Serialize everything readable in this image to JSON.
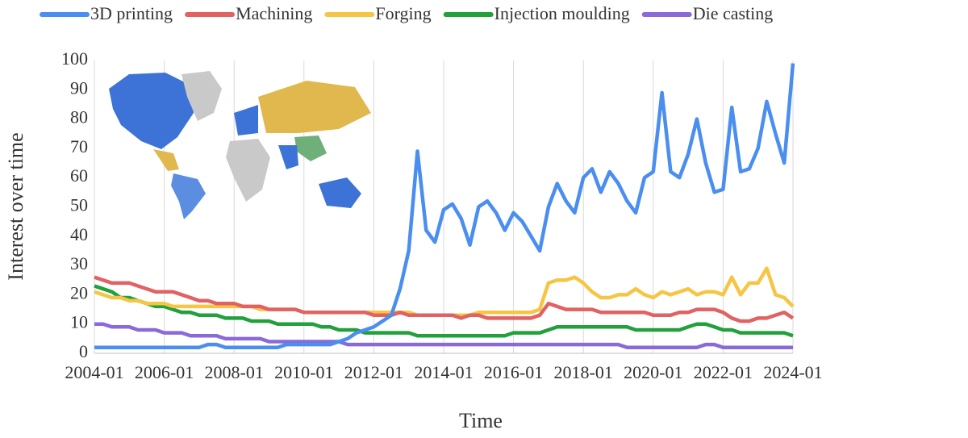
{
  "chart_data": {
    "type": "line",
    "xlabel": "Time",
    "ylabel": "Interest over time",
    "x": [
      "2004-01",
      "2004-04",
      "2004-07",
      "2004-10",
      "2005-01",
      "2005-04",
      "2005-07",
      "2005-10",
      "2006-01",
      "2006-04",
      "2006-07",
      "2006-10",
      "2007-01",
      "2007-04",
      "2007-07",
      "2007-10",
      "2008-01",
      "2008-04",
      "2008-07",
      "2008-10",
      "2009-01",
      "2009-04",
      "2009-07",
      "2009-10",
      "2010-01",
      "2010-04",
      "2010-07",
      "2010-10",
      "2011-01",
      "2011-04",
      "2011-07",
      "2011-10",
      "2012-01",
      "2012-04",
      "2012-07",
      "2012-10",
      "2013-01",
      "2013-04",
      "2013-07",
      "2013-10",
      "2014-01",
      "2014-04",
      "2014-07",
      "2014-10",
      "2015-01",
      "2015-04",
      "2015-07",
      "2015-10",
      "2016-01",
      "2016-04",
      "2016-07",
      "2016-10",
      "2017-01",
      "2017-04",
      "2017-07",
      "2017-10",
      "2018-01",
      "2018-04",
      "2018-07",
      "2018-10",
      "2019-01",
      "2019-04",
      "2019-07",
      "2019-10",
      "2020-01",
      "2020-04",
      "2020-07",
      "2020-10",
      "2021-01",
      "2021-04",
      "2021-07",
      "2021-10",
      "2022-01",
      "2022-04",
      "2022-07",
      "2022-10",
      "2023-01",
      "2023-04",
      "2023-07",
      "2023-10",
      "2024-01"
    ],
    "series": [
      {
        "name": "3D printing",
        "color": "#4a8ef0",
        "values": [
          2,
          2,
          2,
          2,
          2,
          2,
          2,
          2,
          2,
          2,
          2,
          2,
          2,
          3,
          3,
          2,
          2,
          2,
          2,
          2,
          2,
          2,
          3,
          3,
          3,
          3,
          3,
          3,
          4,
          5,
          7,
          8,
          9,
          11,
          13,
          22,
          35,
          69,
          42,
          38,
          49,
          51,
          46,
          37,
          50,
          52,
          48,
          42,
          48,
          45,
          40,
          35,
          50,
          58,
          52,
          48,
          60,
          63,
          55,
          62,
          58,
          52,
          48,
          60,
          62,
          89,
          62,
          60,
          68,
          80,
          65,
          55,
          56,
          84,
          62,
          63,
          70,
          86,
          75,
          65,
          99
        ]
      },
      {
        "name": "Machining",
        "color": "#e06262",
        "values": [
          26,
          25,
          24,
          24,
          24,
          23,
          22,
          21,
          21,
          21,
          20,
          19,
          18,
          18,
          17,
          17,
          17,
          16,
          16,
          16,
          15,
          15,
          15,
          15,
          14,
          14,
          14,
          14,
          14,
          14,
          14,
          14,
          13,
          13,
          13,
          14,
          13,
          13,
          13,
          13,
          13,
          13,
          12,
          13,
          13,
          12,
          12,
          12,
          12,
          12,
          12,
          13,
          17,
          16,
          15,
          15,
          15,
          15,
          14,
          14,
          14,
          14,
          14,
          14,
          13,
          13,
          13,
          14,
          14,
          15,
          15,
          15,
          14,
          12,
          11,
          11,
          12,
          12,
          13,
          14,
          12
        ]
      },
      {
        "name": "Forging",
        "color": "#f6c544",
        "values": [
          21,
          20,
          19,
          19,
          18,
          18,
          17,
          17,
          17,
          16,
          16,
          16,
          16,
          16,
          16,
          16,
          16,
          16,
          16,
          15,
          15,
          15,
          15,
          15,
          14,
          14,
          14,
          14,
          14,
          14,
          14,
          14,
          14,
          14,
          14,
          14,
          14,
          13,
          13,
          13,
          13,
          13,
          13,
          13,
          14,
          14,
          14,
          14,
          14,
          14,
          14,
          15,
          24,
          25,
          25,
          26,
          24,
          21,
          19,
          19,
          20,
          20,
          22,
          20,
          19,
          21,
          20,
          21,
          22,
          20,
          21,
          21,
          20,
          26,
          20,
          24,
          24,
          29,
          20,
          19,
          16
        ]
      },
      {
        "name": "Injection moulding",
        "color": "#22a03c",
        "values": [
          23,
          22,
          21,
          19,
          19,
          18,
          17,
          16,
          16,
          15,
          14,
          14,
          13,
          13,
          13,
          12,
          12,
          12,
          11,
          11,
          11,
          10,
          10,
          10,
          10,
          10,
          9,
          9,
          8,
          8,
          8,
          7,
          7,
          7,
          7,
          7,
          7,
          6,
          6,
          6,
          6,
          6,
          6,
          6,
          6,
          6,
          6,
          6,
          7,
          7,
          7,
          7,
          8,
          9,
          9,
          9,
          9,
          9,
          9,
          9,
          9,
          9,
          8,
          8,
          8,
          8,
          8,
          8,
          9,
          10,
          10,
          9,
          8,
          8,
          7,
          7,
          7,
          7,
          7,
          7,
          6
        ]
      },
      {
        "name": "Die casting",
        "color": "#8a6ad8",
        "values": [
          10,
          10,
          9,
          9,
          9,
          8,
          8,
          8,
          7,
          7,
          7,
          6,
          6,
          6,
          6,
          5,
          5,
          5,
          5,
          5,
          4,
          4,
          4,
          4,
          4,
          4,
          4,
          4,
          4,
          3,
          3,
          3,
          3,
          3,
          3,
          3,
          3,
          3,
          3,
          3,
          3,
          3,
          3,
          3,
          3,
          3,
          3,
          3,
          3,
          3,
          3,
          3,
          3,
          3,
          3,
          3,
          3,
          3,
          3,
          3,
          3,
          2,
          2,
          2,
          2,
          2,
          2,
          2,
          2,
          2,
          3,
          3,
          2,
          2,
          2,
          2,
          2,
          2,
          2,
          2,
          2
        ]
      }
    ],
    "xlim": [
      "2004-01",
      "2024-01"
    ],
    "xticks": [
      "2004-01",
      "2006-01",
      "2008-01",
      "2010-01",
      "2012-01",
      "2014-01",
      "2016-01",
      "2018-01",
      "2020-01",
      "2022-01",
      "2024-01"
    ],
    "ylim": [
      0,
      100
    ],
    "yticks": [
      0,
      10,
      20,
      30,
      40,
      50,
      60,
      70,
      80,
      90,
      100
    ],
    "xgrid": true,
    "legend": "top"
  }
}
